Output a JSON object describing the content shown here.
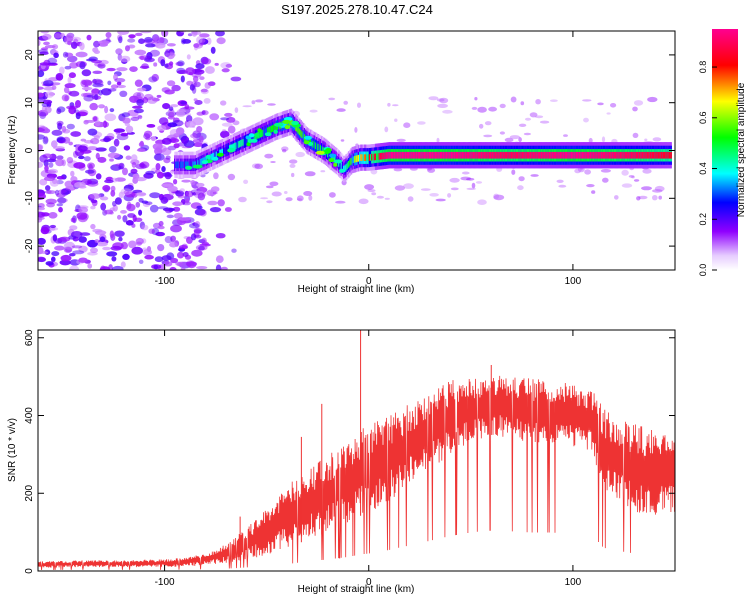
{
  "title": "S197.2025.278.10.47.C24",
  "chart_data": [
    {
      "type": "heatmap",
      "name": "spectrogram",
      "xlabel": "Height of straight line (km)",
      "ylabel": "Frequency (Hz)",
      "xlim": [
        -162,
        150
      ],
      "ylim": [
        -25,
        25
      ],
      "x_ticks": [
        -100,
        0,
        100
      ],
      "y_ticks": [
        20,
        10,
        0,
        -10,
        -20
      ],
      "colorbar": {
        "label": "Normalized spectral amplitude",
        "range": [
          0,
          0.95
        ],
        "ticks": [
          0.0,
          0.2,
          0.4,
          0.6,
          0.8
        ],
        "colors": [
          "#ffffff",
          "#9000ff",
          "#0000ff",
          "#00ffff",
          "#00ff00",
          "#ffff00",
          "#ff0000",
          "#ff0090"
        ]
      },
      "ridge": {
        "x": [
          -95,
          -85,
          -75,
          -65,
          -55,
          -45,
          -38,
          -30,
          -22,
          -15,
          -12,
          -8,
          -4,
          0,
          10,
          40,
          70,
          100,
          130,
          148
        ],
        "freq": [
          -3,
          -3,
          -1,
          1,
          3,
          5,
          6,
          2,
          0,
          -2.5,
          -4,
          -2,
          -1.5,
          -1.5,
          -1,
          -1,
          -1,
          -1,
          -1,
          -1
        ],
        "amplitude": [
          0.3,
          0.35,
          0.4,
          0.45,
          0.5,
          0.55,
          0.6,
          0.55,
          0.5,
          0.45,
          0.4,
          0.6,
          0.7,
          0.8,
          0.95,
          0.95,
          0.9,
          0.95,
          0.9,
          0.85
        ]
      },
      "noise_region_x": [
        -162,
        -80
      ]
    },
    {
      "type": "line",
      "name": "snr",
      "xlabel": "Height of straight line (km)",
      "ylabel": "SNR (10 * v/v)",
      "xlim": [
        -162,
        150
      ],
      "ylim": [
        0,
        620
      ],
      "x_ticks": [
        -100,
        0,
        100
      ],
      "y_ticks": [
        0,
        200,
        400,
        600
      ],
      "series": [
        {
          "name": "SNR",
          "color": "#ee3333",
          "envelope_x": [
            -162,
            -140,
            -120,
            -100,
            -90,
            -80,
            -70,
            -60,
            -50,
            -40,
            -30,
            -20,
            -10,
            -5,
            0,
            10,
            20,
            30,
            40,
            50,
            60,
            70,
            80,
            90,
            100,
            105,
            110,
            115,
            120,
            130,
            140,
            150
          ],
          "envelope_low": [
            8,
            10,
            10,
            10,
            12,
            15,
            20,
            30,
            40,
            60,
            80,
            100,
            120,
            140,
            150,
            180,
            220,
            260,
            300,
            330,
            350,
            340,
            330,
            330,
            320,
            320,
            300,
            200,
            180,
            150,
            140,
            150
          ],
          "envelope_high": [
            25,
            28,
            28,
            30,
            35,
            45,
            70,
            110,
            160,
            220,
            260,
            300,
            330,
            360,
            380,
            400,
            430,
            460,
            490,
            500,
            510,
            500,
            495,
            490,
            485,
            470,
            460,
            420,
            400,
            380,
            360,
            350
          ],
          "spikes": [
            {
              "x": -4,
              "y": 620
            },
            {
              "x": -23,
              "y": 430
            },
            {
              "x": -63,
              "y": 140
            },
            {
              "x": -33,
              "y": 345
            },
            {
              "x": 60,
              "y": 530
            }
          ]
        }
      ]
    }
  ]
}
